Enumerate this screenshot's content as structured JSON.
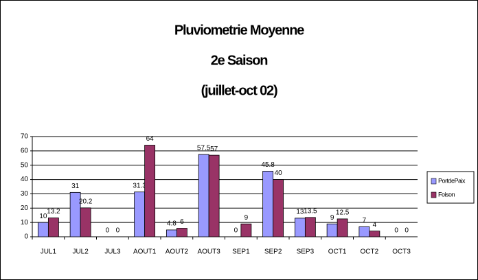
{
  "chart_data": {
    "type": "bar",
    "title_lines": [
      "Pluviometrie Moyenne",
      "2e Saison",
      "(juillet-oct 02)"
    ],
    "categories": [
      "JUL1",
      "JUL2",
      "JUL3",
      "AOUT1",
      "AOUT2",
      "AOUT3",
      "SEP1",
      "SEP2",
      "SEP3",
      "OCT1",
      "OCT2",
      "OCT3"
    ],
    "series": [
      {
        "name": "PortdePaix",
        "color": "#9999ff",
        "values": [
          10,
          31,
          0,
          31.3,
          4.8,
          57.5,
          0,
          45.8,
          13,
          9,
          7,
          0
        ]
      },
      {
        "name": "Foison",
        "color": "#993366",
        "values": [
          13.2,
          20.2,
          0,
          64,
          6,
          57,
          9,
          40,
          13.5,
          12.5,
          4,
          0
        ]
      }
    ],
    "ylim": [
      0,
      70
    ],
    "yticks": [
      0,
      10,
      20,
      30,
      40,
      50,
      60,
      70
    ],
    "grid": true,
    "legend": "right"
  }
}
